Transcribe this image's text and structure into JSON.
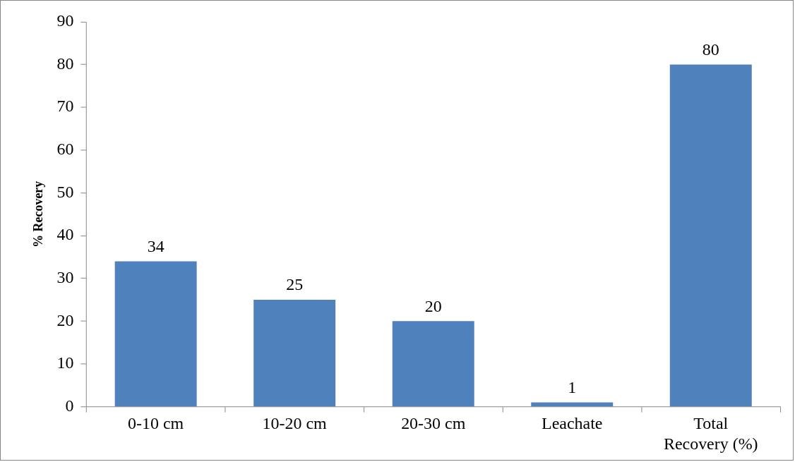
{
  "chart_data": {
    "type": "bar",
    "ylabel": "% Recovery",
    "categories": [
      "0-10 cm",
      "10-20 cm",
      "20-30 cm",
      "Leachate",
      "Total Recovery (%)"
    ],
    "values": [
      34,
      25,
      20,
      1,
      80
    ],
    "color": "#4f81bd",
    "ylim": [
      0,
      90
    ],
    "yticks": [
      0,
      10,
      20,
      30,
      40,
      50,
      60,
      70,
      80,
      90
    ],
    "grid": false,
    "legend": false,
    "data_labels": true
  }
}
